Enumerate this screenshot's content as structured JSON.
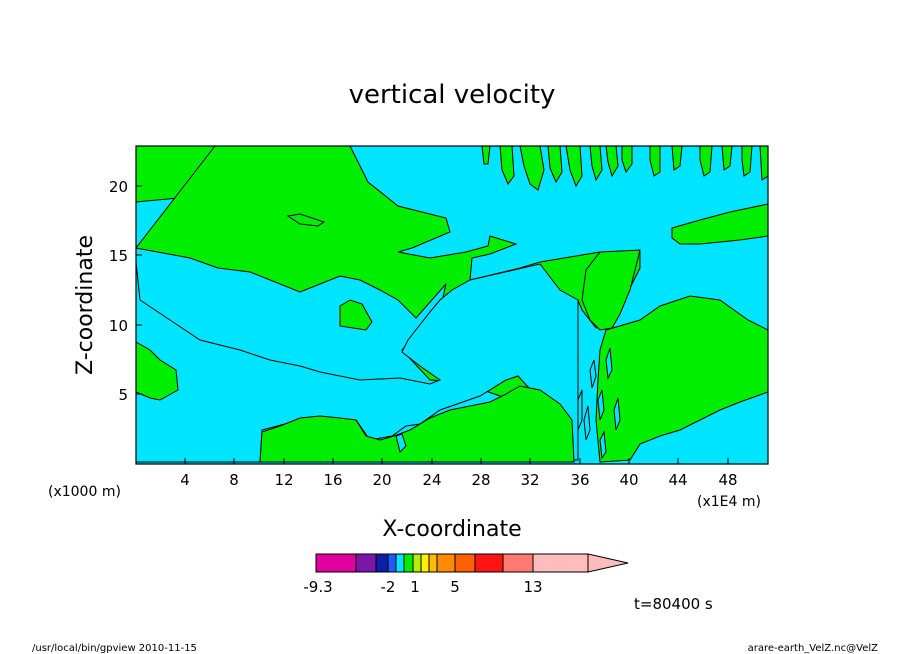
{
  "chart_data": {
    "type": "heatmap",
    "title": "vertical velocity",
    "xlabel": "X-coordinate",
    "ylabel": "Z-coordinate",
    "x_unit_label": "(x1000 m)",
    "x_unit_label_right": "(x1E4 m)",
    "xlim": [
      0,
      51.5
    ],
    "ylim": [
      0,
      23
    ],
    "x_ticks": [
      "4",
      "8",
      "12",
      "16",
      "20",
      "24",
      "28",
      "32",
      "36",
      "40",
      "44",
      "48"
    ],
    "y_ticks": [
      "5",
      "10",
      "15",
      "20"
    ],
    "colorbar": {
      "tick_labels": [
        "-9.3",
        "-2",
        "1",
        "5",
        "13"
      ],
      "colors": [
        "#e0009e",
        "#7a17a8",
        "#0d1fa8",
        "#1f5aff",
        "#00e5ff",
        "#00ee00",
        "#b4ee00",
        "#ffee00",
        "#ffbb00",
        "#ff8c00",
        "#ff6000",
        "#ff1414",
        "#ff7a70",
        "#ffbcbc"
      ]
    },
    "regions": [
      {
        "name": "background",
        "color": "#00e5ff"
      },
      {
        "name": "positive",
        "color": "#00ee00"
      }
    ],
    "time_label": "t=80400  s",
    "footer_left": "/usr/local/bin/gpview   2010-11-15",
    "footer_right": "arare-earth_VelZ.nc@VelZ"
  }
}
